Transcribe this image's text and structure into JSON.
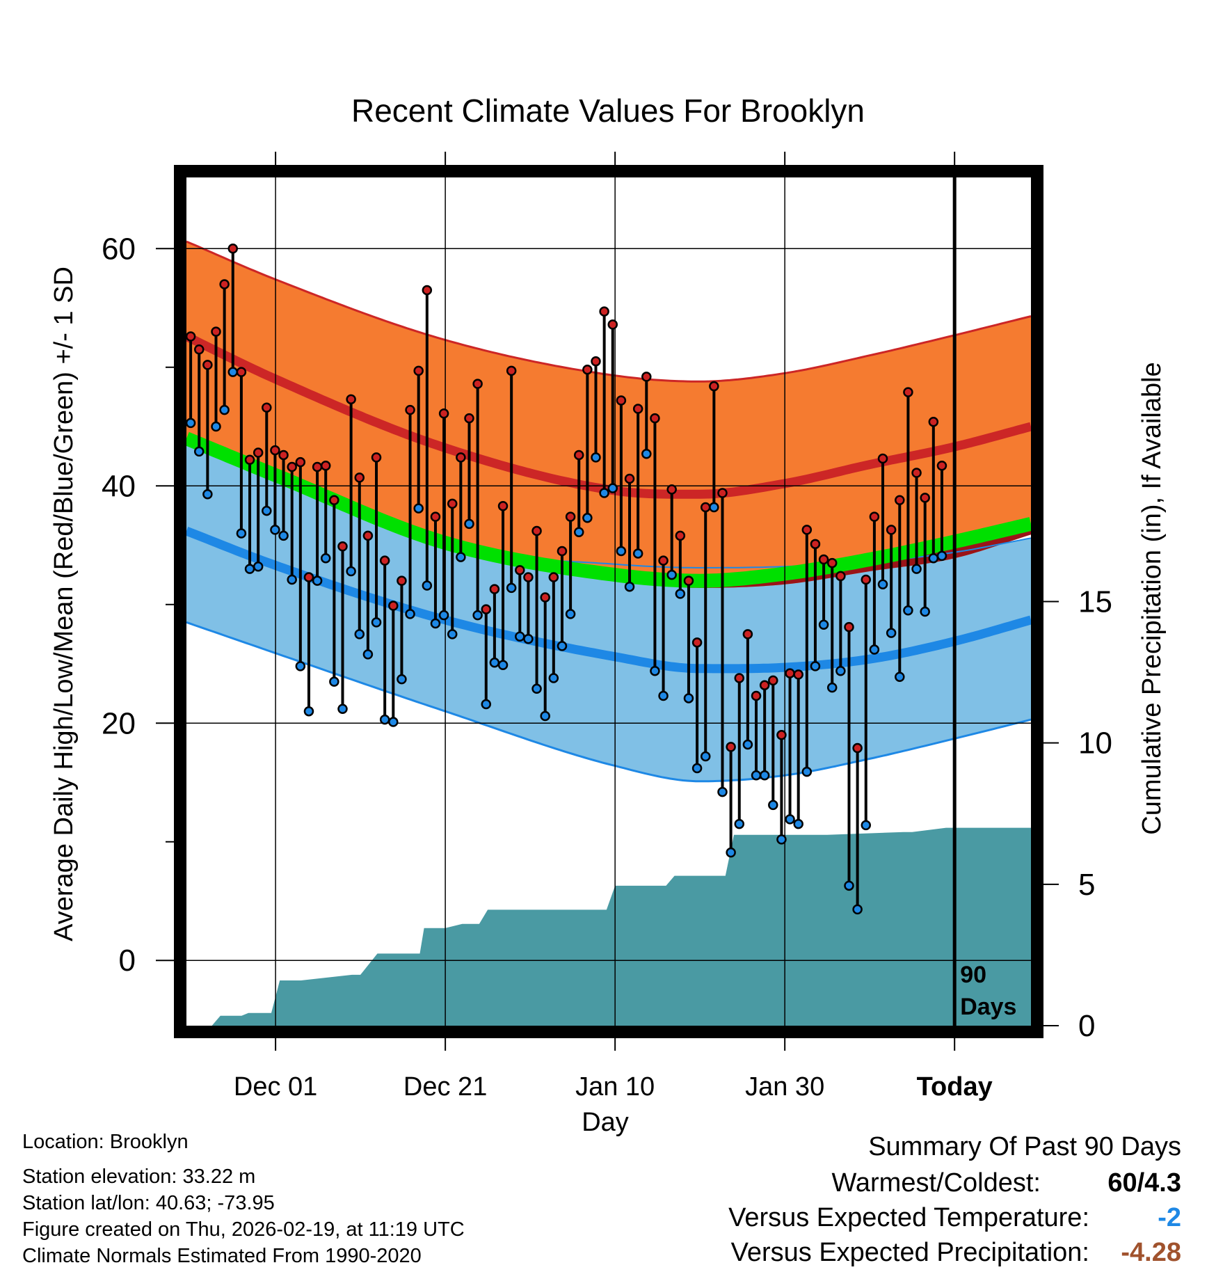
{
  "chart_data": {
    "type": "line",
    "title": "Recent Climate Values For Brooklyn",
    "xlabel": "Day",
    "ylabel": "Average Daily High/Low/Mean (Red/Blue/Green) +/- 1 SD",
    "y2label": "Cumulative Precipitation (in), If Available",
    "x_range": [
      -10.5,
      89
    ],
    "ylim": [
      -5.5,
      66
    ],
    "y_ticks": [
      0,
      20,
      40,
      60
    ],
    "y2lim": [
      0,
      30
    ],
    "y2_ticks": [
      0,
      5,
      10,
      15
    ],
    "x_ticks": [
      {
        "x": 0,
        "label": "Dec 01"
      },
      {
        "x": 20,
        "label": "Dec 21"
      },
      {
        "x": 40,
        "label": "Jan 10"
      },
      {
        "x": 60,
        "label": "Jan 30"
      },
      {
        "x": 80,
        "label": "Today"
      }
    ],
    "today_x": 80,
    "today_label": [
      "90",
      "Days"
    ],
    "colors": {
      "high_band": "#f57b30",
      "high_mean": "#cc2626",
      "mean_band": "#9a1418",
      "mean_line": "#00e000",
      "low_band": "#80c0e6",
      "low_mean": "#1e88e5",
      "precip": "#4a9aa3",
      "high_point": "#cc2222",
      "low_point": "#1e88e5"
    },
    "normals": {
      "x": [
        -10.5,
        0,
        20,
        40,
        50,
        60,
        70,
        80,
        89
      ],
      "high_plus_sd": [
        60.6,
        57.4,
        52.3,
        49.3,
        48.8,
        49.5,
        51.0,
        52.7,
        54.3
      ],
      "high_mean": [
        52.6,
        49.0,
        43.2,
        39.6,
        39.3,
        40.2,
        41.8,
        43.3,
        45.0
      ],
      "high_minus_sd": [
        44.0,
        40.6,
        34.9,
        32.2,
        31.4,
        31.7,
        32.8,
        33.9,
        35.9
      ],
      "mean_line": [
        44.0,
        40.9,
        35.2,
        32.5,
        32.0,
        32.6,
        33.8,
        35.3,
        36.8
      ],
      "low_plus_sd": [
        44.0,
        40.6,
        34.9,
        33.4,
        33.1,
        33.2,
        33.6,
        34.4,
        35.6
      ],
      "low_mean": [
        36.2,
        33.3,
        28.7,
        25.6,
        24.6,
        24.7,
        25.4,
        26.9,
        28.7
      ],
      "low_minus_sd": [
        28.5,
        25.9,
        21.0,
        16.4,
        15.1,
        15.6,
        17.0,
        18.7,
        20.3
      ]
    },
    "precipitation": {
      "x": [
        -10.5,
        -7.5,
        -6.5,
        -4,
        -3.2,
        -0.5,
        0.5,
        2,
        3,
        9,
        10,
        12,
        13,
        17,
        17.5,
        20,
        22,
        24,
        25,
        26,
        27,
        28,
        38,
        39,
        40,
        41,
        46,
        47,
        48,
        53,
        54,
        55,
        58,
        64,
        65,
        74,
        75,
        79,
        89
      ],
      "cumulative": [
        0,
        0,
        0.35,
        0.35,
        0.45,
        0.45,
        1.6,
        1.6,
        1.6,
        1.8,
        1.8,
        2.55,
        2.55,
        2.55,
        3.45,
        3.45,
        3.6,
        3.6,
        4.1,
        4.1,
        4.1,
        4.1,
        4.1,
        4.1,
        4.95,
        4.95,
        4.95,
        5.3,
        5.3,
        5.3,
        6.75,
        6.75,
        6.75,
        6.75,
        6.75,
        6.85,
        6.85,
        7.0,
        7.0
      ]
    },
    "series": [
      {
        "name": "Daily High",
        "values": [
          52.6,
          51.5,
          50.2,
          53.0,
          57.0,
          60.0,
          49.6,
          42.2,
          42.8,
          46.6,
          43.0,
          42.6,
          41.6,
          42.0,
          32.3,
          41.6,
          41.7,
          38.8,
          34.9,
          47.3,
          40.7,
          35.8,
          42.4,
          33.7,
          29.9,
          32.0,
          46.4,
          49.7,
          56.5,
          37.4,
          46.1,
          38.5,
          42.4,
          45.7,
          48.6,
          29.6,
          31.3,
          38.3,
          49.7,
          32.9,
          32.3,
          36.2,
          30.6,
          32.3,
          34.5,
          37.4,
          42.6,
          49.8,
          50.5,
          54.7,
          53.6,
          47.2,
          40.6,
          46.5,
          49.2,
          45.7,
          33.7,
          39.7,
          35.8,
          32.0,
          26.8,
          38.2,
          48.4,
          39.4,
          18.0,
          23.8,
          27.5,
          22.3,
          23.2,
          23.6,
          19.0,
          24.2,
          24.1,
          36.3,
          35.1,
          33.8,
          33.5,
          32.4,
          28.1,
          17.9,
          32.1,
          37.4,
          42.3,
          36.3,
          38.8,
          47.9,
          41.1,
          39.0,
          45.4,
          41.7
        ]
      },
      {
        "name": "Daily Low",
        "values": [
          45.3,
          42.9,
          39.3,
          45.0,
          46.4,
          49.6,
          36.0,
          33.0,
          33.2,
          37.9,
          36.3,
          35.8,
          32.1,
          24.8,
          21.0,
          32.0,
          33.9,
          23.5,
          21.2,
          32.8,
          27.5,
          25.8,
          28.5,
          20.3,
          20.1,
          23.7,
          29.2,
          38.1,
          31.6,
          28.4,
          29.1,
          27.5,
          34.0,
          36.8,
          29.1,
          21.6,
          25.1,
          24.9,
          31.4,
          27.3,
          27.1,
          22.9,
          20.6,
          23.8,
          26.5,
          29.2,
          36.1,
          37.3,
          42.4,
          39.4,
          39.8,
          34.5,
          31.5,
          34.3,
          42.7,
          24.4,
          22.3,
          32.5,
          30.9,
          22.1,
          16.2,
          17.2,
          38.2,
          14.2,
          9.1,
          11.5,
          18.2,
          15.6,
          15.6,
          13.1,
          10.2,
          11.9,
          11.5,
          15.9,
          24.8,
          28.3,
          23.0,
          24.4,
          6.3,
          4.3,
          11.4,
          26.2,
          31.7,
          27.6,
          23.9,
          29.5,
          33.0,
          29.4,
          33.9,
          34.1
        ]
      }
    ]
  },
  "info": {
    "location": "Location: Brooklyn",
    "elevation": "Station elevation: 33.22 m",
    "latlon": "Station lat/lon: 40.63; -73.95",
    "created": "Figure created on Thu, 2026-02-19, at 11:19 UTC",
    "normals": "Climate Normals Estimated From 1990-2020"
  },
  "summary": {
    "heading": "Summary Of Past 90 Days",
    "warm_label": "Warmest/Coldest:",
    "warm_value": "60/4.3",
    "temp_label": "Versus Expected Temperature:",
    "temp_value": "-2",
    "temp_color": "#1e88e5",
    "precip_label": "Versus Expected Precipitation:",
    "precip_value": "-4.28",
    "precip_color": "#a0522d"
  }
}
